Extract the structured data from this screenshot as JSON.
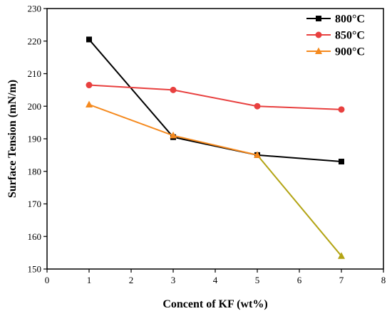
{
  "chart_data": {
    "type": "line",
    "title": "",
    "xlabel": "Concent of KF (wt%)",
    "ylabel": "Surface Tension (mN/m)",
    "xlim": [
      0,
      8
    ],
    "ylim": [
      150,
      230
    ],
    "xticks": [
      0,
      1,
      2,
      3,
      4,
      5,
      6,
      7,
      8
    ],
    "yticks": [
      150,
      160,
      170,
      180,
      190,
      200,
      210,
      220,
      230
    ],
    "grid": false,
    "legend_position": "top-right",
    "x": [
      1,
      3,
      5,
      7
    ],
    "series": [
      {
        "name": "800°C",
        "values": [
          220.5,
          190.5,
          185,
          183
        ],
        "color": "#000000",
        "marker": "square"
      },
      {
        "name": "850°C",
        "values": [
          206.5,
          205,
          200,
          199
        ],
        "color": "#e8403f",
        "marker": "circle"
      },
      {
        "name": "900°C",
        "values": [
          200.5,
          191,
          185,
          154
        ],
        "color": "#f58a1f",
        "marker": "triangle",
        "last_segment_color": "#b3a414"
      }
    ]
  }
}
